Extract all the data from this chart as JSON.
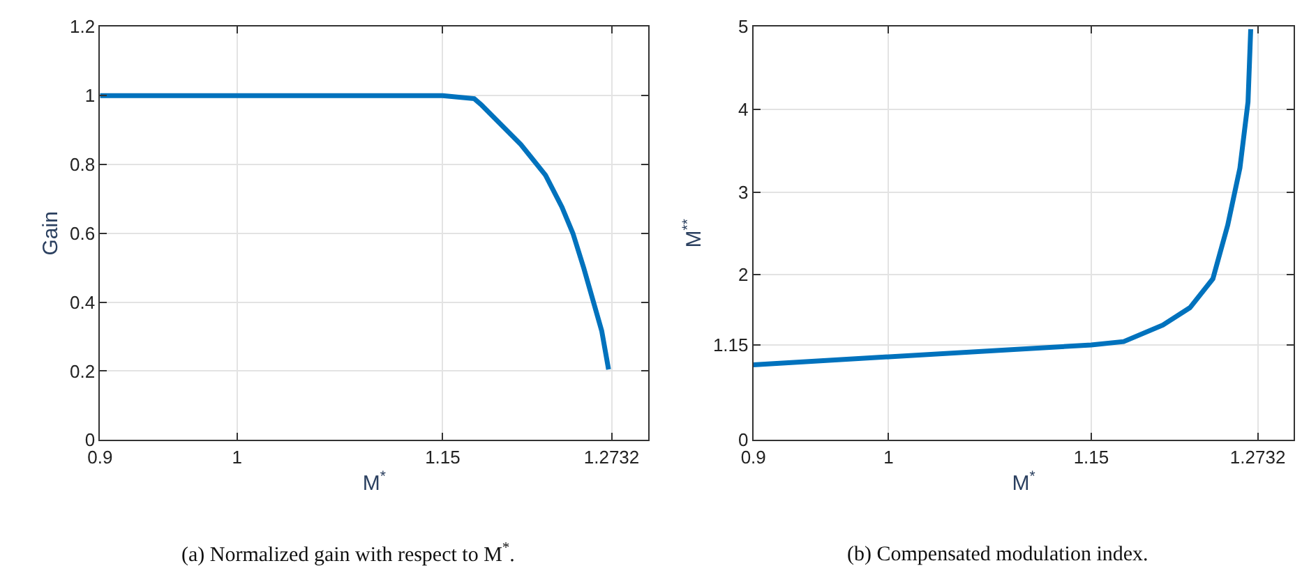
{
  "chart_data": [
    {
      "type": "line",
      "xlabel": "M$^{*}$",
      "ylabel": "Gain",
      "annotations": [
        "(a) Normalized gain with respect to M$^{*}$."
      ],
      "x": [
        0.9,
        1.15,
        1.173,
        1.178,
        1.207,
        1.225,
        1.237,
        1.245,
        1.253,
        1.266,
        1.271
      ],
      "series": [
        {
          "color": "#0072bd",
          "values": [
            1.0,
            1.0,
            0.991,
            0.974,
            0.858,
            0.769,
            0.676,
            0.6,
            0.498,
            0.317,
            0.205
          ]
        }
      ],
      "xlim": [
        0.9,
        1.3
      ],
      "xticks": [
        0.9,
        1,
        1.15,
        1.2732
      ],
      "ylim": [
        0,
        1.2
      ],
      "yticks": [
        0,
        0.2,
        0.4,
        0.6,
        0.8,
        1,
        1.2
      ],
      "grid": true,
      "marker": "none",
      "line_style": "solid"
    },
    {
      "type": "line",
      "xlabel": "M$^{*}$",
      "ylabel": "M$^{**}$",
      "annotations": [
        "(b) Compensated modulation index."
      ],
      "x": [
        0.9,
        1.15,
        1.174,
        1.203,
        1.223,
        1.24,
        1.251,
        1.26,
        1.266,
        1.268
      ],
      "series": [
        {
          "color": "#0072bd",
          "values": [
            0.91,
            1.15,
            1.19,
            1.39,
            1.6,
            1.95,
            2.6,
            3.29,
            4.09,
            4.97
          ]
        }
      ],
      "xlim": [
        0.9,
        1.3
      ],
      "xticks": [
        0.9,
        1,
        1.15,
        1.2732
      ],
      "ylim": [
        0,
        5
      ],
      "yticks": [
        0,
        1.15,
        2,
        3,
        4,
        5
      ],
      "grid": true,
      "marker": "none",
      "line_style": "solid"
    }
  ]
}
